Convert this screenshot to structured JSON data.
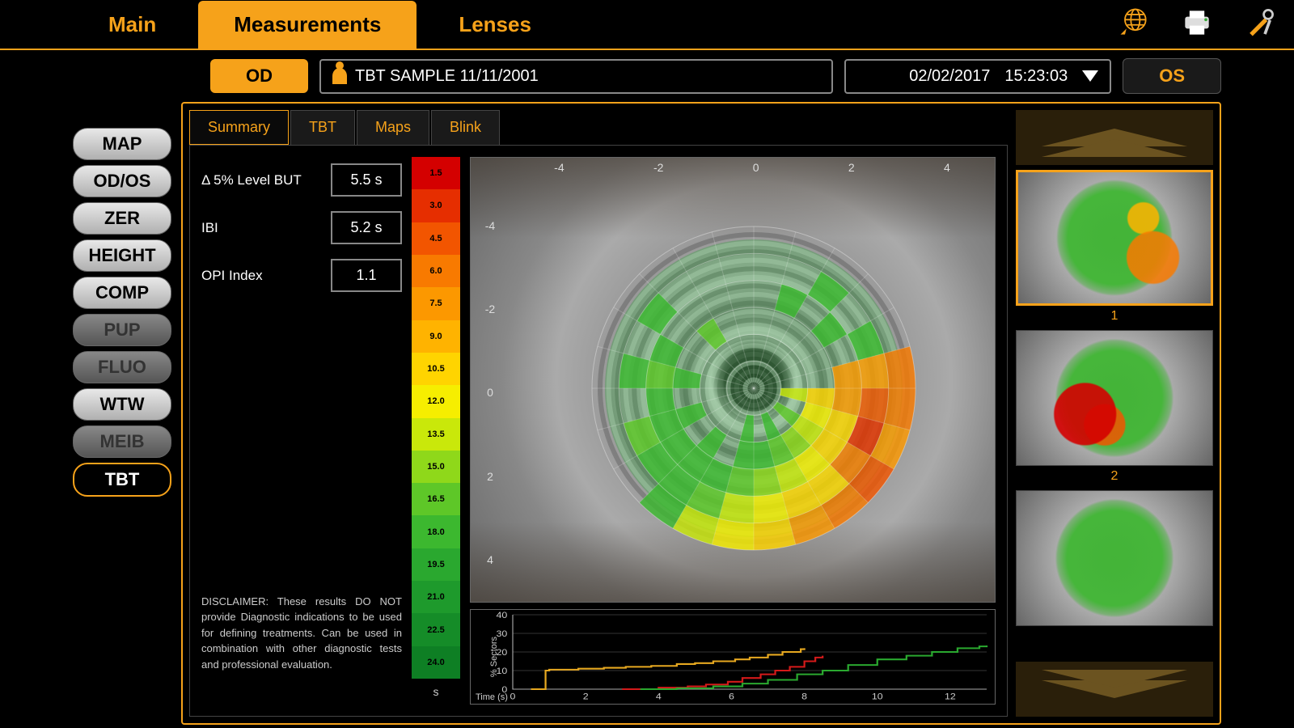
{
  "tabs": {
    "main": "Main",
    "measurements": "Measurements",
    "lenses": "Lenses",
    "active": "measurements"
  },
  "eyes": {
    "od": "OD",
    "os": "OS",
    "active": "od"
  },
  "patient": {
    "name": "TBT SAMPLE 11/11/2001",
    "date": "02/02/2017",
    "time": "15:23:03"
  },
  "sideNav": [
    {
      "label": "MAP",
      "state": "normal"
    },
    {
      "label": "OD/OS",
      "state": "normal"
    },
    {
      "label": "ZER",
      "state": "normal"
    },
    {
      "label": "HEIGHT",
      "state": "normal"
    },
    {
      "label": "COMP",
      "state": "normal"
    },
    {
      "label": "PUP",
      "state": "dim"
    },
    {
      "label": "FLUO",
      "state": "dim"
    },
    {
      "label": "WTW",
      "state": "normal"
    },
    {
      "label": "MEIB",
      "state": "dim"
    },
    {
      "label": "TBT",
      "state": "active"
    }
  ],
  "subTabs": {
    "items": [
      "Summary",
      "TBT",
      "Maps",
      "Blink"
    ],
    "active": "Summary"
  },
  "metrics": [
    {
      "label": "Δ 5% Level BUT",
      "value": "5.5 s"
    },
    {
      "label": "IBI",
      "value": "5.2 s"
    },
    {
      "label": "OPI Index",
      "value": "1.1"
    }
  ],
  "disclaimer": "DISCLAIMER: These results DO NOT provide Diagnostic indications to be used for defining treatments. Can be used in combination with other diagnostic tests and professional evaluation.",
  "legend": {
    "unit": "s",
    "cells": [
      {
        "v": "1.5",
        "c": "#d40000"
      },
      {
        "v": "3.0",
        "c": "#e62e00"
      },
      {
        "v": "4.5",
        "c": "#f25500"
      },
      {
        "v": "6.0",
        "c": "#f87a00"
      },
      {
        "v": "7.5",
        "c": "#fc9800"
      },
      {
        "v": "9.0",
        "c": "#ffb300"
      },
      {
        "v": "10.5",
        "c": "#ffd400"
      },
      {
        "v": "12.0",
        "c": "#f6ee00"
      },
      {
        "v": "13.5",
        "c": "#c9e80a"
      },
      {
        "v": "15.0",
        "c": "#8fd81a"
      },
      {
        "v": "16.5",
        "c": "#5ec728"
      },
      {
        "v": "18.0",
        "c": "#3cb82f"
      },
      {
        "v": "19.5",
        "c": "#2aa82f"
      },
      {
        "v": "21.0",
        "c": "#1e9a2c"
      },
      {
        "v": "22.5",
        "c": "#158c28"
      },
      {
        "v": "24.0",
        "c": "#0e7f24"
      }
    ]
  },
  "eyeMap": {
    "xTicks": [
      "-4",
      "-2",
      "0",
      "2",
      "4"
    ],
    "yTicks": [
      "-4",
      "-2",
      "0",
      "2",
      "4"
    ],
    "rings": 6,
    "sectorsPerRing": 24,
    "fillOpacity": 0.82,
    "sectors": [
      {
        "ring": 5,
        "ang": 5,
        "c": "#f87a00"
      },
      {
        "ring": 5,
        "ang": 6,
        "c": "#f87a00"
      },
      {
        "ring": 5,
        "ang": 7,
        "c": "#fc9800"
      },
      {
        "ring": 5,
        "ang": 8,
        "c": "#f25500"
      },
      {
        "ring": 5,
        "ang": 9,
        "c": "#f87a00"
      },
      {
        "ring": 5,
        "ang": 10,
        "c": "#fc9800"
      },
      {
        "ring": 5,
        "ang": 11,
        "c": "#ffd400"
      },
      {
        "ring": 5,
        "ang": 12,
        "c": "#f6ee00"
      },
      {
        "ring": 5,
        "ang": 13,
        "c": "#c9e80a"
      },
      {
        "ring": 5,
        "ang": 14,
        "c": "#3cb82f"
      },
      {
        "ring": 4,
        "ang": 4,
        "c": "#3cb82f"
      },
      {
        "ring": 4,
        "ang": 5,
        "c": "#fc9800"
      },
      {
        "ring": 4,
        "ang": 6,
        "c": "#f25500"
      },
      {
        "ring": 4,
        "ang": 7,
        "c": "#e62e00"
      },
      {
        "ring": 4,
        "ang": 8,
        "c": "#f87a00"
      },
      {
        "ring": 4,
        "ang": 9,
        "c": "#ffd400"
      },
      {
        "ring": 4,
        "ang": 10,
        "c": "#ffd400"
      },
      {
        "ring": 4,
        "ang": 11,
        "c": "#f6ee00"
      },
      {
        "ring": 4,
        "ang": 12,
        "c": "#c9e80a"
      },
      {
        "ring": 4,
        "ang": 13,
        "c": "#5ec728"
      },
      {
        "ring": 4,
        "ang": 14,
        "c": "#3cb82f"
      },
      {
        "ring": 4,
        "ang": 15,
        "c": "#3cb82f"
      },
      {
        "ring": 4,
        "ang": 16,
        "c": "#5ec728"
      },
      {
        "ring": 4,
        "ang": 18,
        "c": "#3cb82f"
      },
      {
        "ring": 4,
        "ang": 20,
        "c": "#3cb82f"
      },
      {
        "ring": 4,
        "ang": 2,
        "c": "#3cb82f"
      },
      {
        "ring": 3,
        "ang": 5,
        "c": "#fc9800"
      },
      {
        "ring": 3,
        "ang": 6,
        "c": "#fc9800"
      },
      {
        "ring": 3,
        "ang": 7,
        "c": "#ffd400"
      },
      {
        "ring": 3,
        "ang": 8,
        "c": "#ffd400"
      },
      {
        "ring": 3,
        "ang": 9,
        "c": "#f6ee00"
      },
      {
        "ring": 3,
        "ang": 10,
        "c": "#c9e80a"
      },
      {
        "ring": 3,
        "ang": 11,
        "c": "#8fd81a"
      },
      {
        "ring": 3,
        "ang": 12,
        "c": "#5ec728"
      },
      {
        "ring": 3,
        "ang": 13,
        "c": "#3cb82f"
      },
      {
        "ring": 3,
        "ang": 14,
        "c": "#3cb82f"
      },
      {
        "ring": 3,
        "ang": 15,
        "c": "#3cb82f"
      },
      {
        "ring": 3,
        "ang": 16,
        "c": "#3cb82f"
      },
      {
        "ring": 3,
        "ang": 17,
        "c": "#3cb82f"
      },
      {
        "ring": 3,
        "ang": 18,
        "c": "#5ec728"
      },
      {
        "ring": 3,
        "ang": 19,
        "c": "#3cb82f"
      },
      {
        "ring": 3,
        "ang": 1,
        "c": "#3cb82f"
      },
      {
        "ring": 3,
        "ang": 3,
        "c": "#3cb82f"
      },
      {
        "ring": 2,
        "ang": 6,
        "c": "#ffd400"
      },
      {
        "ring": 2,
        "ang": 7,
        "c": "#f6ee00"
      },
      {
        "ring": 2,
        "ang": 8,
        "c": "#c9e80a"
      },
      {
        "ring": 2,
        "ang": 9,
        "c": "#8fd81a"
      },
      {
        "ring": 2,
        "ang": 10,
        "c": "#5ec728"
      },
      {
        "ring": 2,
        "ang": 11,
        "c": "#3cb82f"
      },
      {
        "ring": 2,
        "ang": 12,
        "c": "#3cb82f"
      },
      {
        "ring": 2,
        "ang": 14,
        "c": "#3cb82f"
      },
      {
        "ring": 2,
        "ang": 16,
        "c": "#3cb82f"
      },
      {
        "ring": 2,
        "ang": 18,
        "c": "#3cb82f"
      },
      {
        "ring": 2,
        "ang": 21,
        "c": "#5ec728"
      },
      {
        "ring": 1,
        "ang": 8,
        "c": "#5ec728"
      },
      {
        "ring": 1,
        "ang": 10,
        "c": "#3cb82f"
      },
      {
        "ring": 1,
        "ang": 12,
        "c": "#3cb82f"
      },
      {
        "ring": 1,
        "ang": 6,
        "c": "#c9e80a"
      }
    ]
  },
  "timeChart": {
    "ylabel": "% Sectors",
    "xlabel": "Time (s)",
    "xlim": [
      0,
      13
    ],
    "ylim": [
      0,
      40
    ],
    "xticks": [
      0,
      2,
      4,
      6,
      8,
      10,
      12
    ],
    "yticks": [
      0,
      10,
      20,
      30,
      40
    ],
    "grid_color": "#333",
    "axis_color": "#aaa",
    "tick_fontsize": 11,
    "line_width": 2,
    "series": [
      {
        "color": "#e6a820",
        "pts": [
          [
            0.5,
            0
          ],
          [
            0.9,
            10
          ],
          [
            1.0,
            10.5
          ],
          [
            1.8,
            11
          ],
          [
            2.5,
            11.5
          ],
          [
            3.1,
            12
          ],
          [
            3.8,
            12.5
          ],
          [
            4.5,
            13.5
          ],
          [
            5.0,
            14
          ],
          [
            5.5,
            15
          ],
          [
            6.1,
            16
          ],
          [
            6.5,
            17
          ],
          [
            7.0,
            18.5
          ],
          [
            7.4,
            20
          ],
          [
            7.9,
            21.5
          ],
          [
            8.0,
            22
          ]
        ]
      },
      {
        "color": "#d41a1a",
        "pts": [
          [
            3.0,
            0
          ],
          [
            4.0,
            0.8
          ],
          [
            4.8,
            1.5
          ],
          [
            5.3,
            2.5
          ],
          [
            5.9,
            4
          ],
          [
            6.3,
            6
          ],
          [
            6.8,
            8
          ],
          [
            7.2,
            10
          ],
          [
            7.6,
            12
          ],
          [
            8.0,
            15
          ],
          [
            8.3,
            17
          ],
          [
            8.5,
            18
          ]
        ]
      },
      {
        "color": "#2aa82f",
        "pts": [
          [
            3.5,
            0
          ],
          [
            4.5,
            0.5
          ],
          [
            5.5,
            1.5
          ],
          [
            6.3,
            3
          ],
          [
            7.0,
            5
          ],
          [
            7.8,
            8
          ],
          [
            8.5,
            10
          ],
          [
            9.2,
            13
          ],
          [
            10.0,
            16
          ],
          [
            10.8,
            18
          ],
          [
            11.5,
            20
          ],
          [
            12.2,
            22
          ],
          [
            12.8,
            23
          ],
          [
            13.0,
            23.5
          ]
        ]
      }
    ]
  },
  "thumbnails": {
    "items": [
      {
        "label": "1",
        "selected": true,
        "variant": "green-orange"
      },
      {
        "label": "2",
        "selected": false,
        "variant": "green-red"
      },
      {
        "label": "",
        "selected": false,
        "variant": "green"
      }
    ]
  }
}
